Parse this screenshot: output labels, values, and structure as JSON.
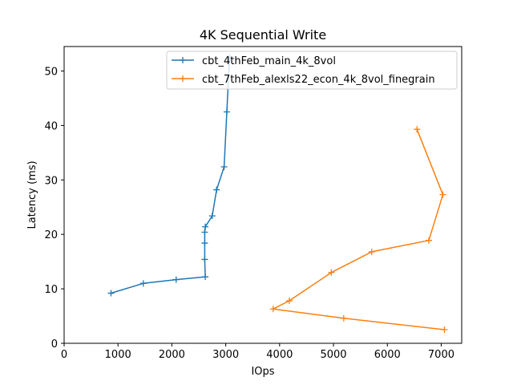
{
  "chart_data": {
    "type": "line",
    "title": "4K  Sequential Write",
    "xlabel": "IOps",
    "ylabel": "Latency (ms)",
    "xlim": [
      0,
      7380
    ],
    "ylim": [
      0,
      54.5
    ],
    "xticks": [
      0,
      1000,
      2000,
      3000,
      4000,
      5000,
      6000,
      7000
    ],
    "yticks": [
      0,
      10,
      20,
      30,
      40,
      50
    ],
    "grid": false,
    "legend_position": "top-right",
    "series": [
      {
        "name": "cbt_4thFeb_main_4k_8vol",
        "color": "#1f77b4",
        "x": [
          870,
          1470,
          2080,
          2620,
          2610,
          2610,
          2610,
          2620,
          2750,
          2830,
          2970,
          3020,
          3070
        ],
        "y": [
          9.2,
          11.0,
          11.7,
          12.2,
          15.4,
          18.4,
          20.4,
          21.4,
          23.4,
          28.2,
          32.4,
          42.5,
          52.5
        ]
      },
      {
        "name": "cbt_7thFeb_alexls22_econ_4k_8vol_finegrain",
        "color": "#ff7f0e",
        "x": [
          7060,
          5190,
          3880,
          4180,
          4960,
          5710,
          6770,
          7030,
          6550
        ],
        "y": [
          2.5,
          4.6,
          6.3,
          7.8,
          13.0,
          16.8,
          18.9,
          27.3,
          39.3
        ]
      }
    ]
  }
}
